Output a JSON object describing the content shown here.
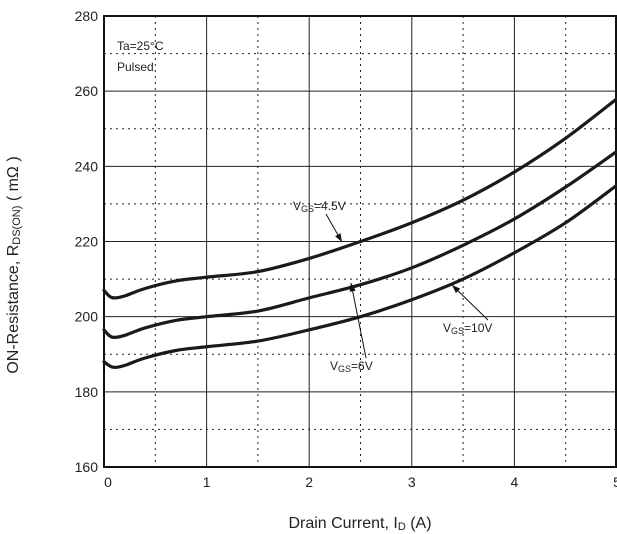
{
  "chart_data": {
    "type": "line",
    "title": "",
    "xlabel": {
      "main": "Drain Current, I",
      "sub": "D",
      "unit": " (A)"
    },
    "ylabel": {
      "main": "ON-Resistance, R",
      "sub": "DS(ON)",
      "unit": " ( mΩ )"
    },
    "xlim": [
      0,
      5
    ],
    "ylim": [
      160,
      280
    ],
    "x_ticks": [
      "0",
      "1",
      "2",
      "3",
      "4",
      "5"
    ],
    "y_ticks": [
      "160",
      "180",
      "200",
      "220",
      "240",
      "260",
      "280"
    ],
    "grid": true,
    "conditions": [
      "Ta=25°C",
      "Pulsed"
    ],
    "series": [
      {
        "name": "VGS=4.5V",
        "label_main": "V",
        "label_sub": "GS",
        "label_tail": "=4.5V",
        "x": [
          0,
          0.05,
          0.1,
          0.2,
          0.4,
          0.7,
          1.0,
          1.5,
          2.0,
          2.5,
          3.0,
          3.5,
          4.0,
          4.5,
          5.0
        ],
        "y": [
          207,
          205.5,
          205,
          205.5,
          207.5,
          209.5,
          210.5,
          212,
          215.5,
          220,
          225,
          231,
          238.5,
          247.5,
          258
        ]
      },
      {
        "name": "VGS=6V",
        "label_main": "V",
        "label_sub": "GS",
        "label_tail": "=6V",
        "x": [
          0,
          0.05,
          0.1,
          0.2,
          0.4,
          0.7,
          1.0,
          1.5,
          2.0,
          2.5,
          3.0,
          3.5,
          4.0,
          4.5,
          5.0
        ],
        "y": [
          196.5,
          195,
          194.5,
          195,
          197,
          199,
          200,
          201.5,
          205,
          208.5,
          213,
          219,
          226,
          234.5,
          244
        ]
      },
      {
        "name": "VGS=10V",
        "label_main": "V",
        "label_sub": "GS",
        "label_tail": "=10V",
        "x": [
          0,
          0.05,
          0.1,
          0.2,
          0.4,
          0.7,
          1.0,
          1.5,
          2.0,
          2.5,
          3.0,
          3.5,
          4.0,
          4.5,
          5.0
        ],
        "y": [
          188,
          187,
          186.5,
          187,
          189,
          191,
          192,
          193.5,
          196.5,
          200,
          204.5,
          210,
          217,
          225,
          235
        ]
      }
    ],
    "colors": {
      "line": "#1a1a1a",
      "grid_solid": "#222222",
      "grid_dotted": "#222222",
      "background": "#ffffff"
    }
  }
}
